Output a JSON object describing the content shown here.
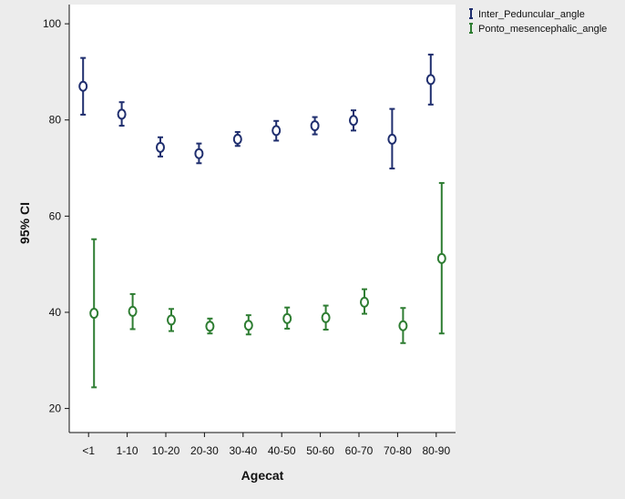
{
  "chart_data": {
    "type": "scatter",
    "title": "",
    "xlabel": "Agecat",
    "ylabel": "95% CI",
    "categories": [
      "<1",
      "1-10",
      "10-20",
      "20-30",
      "30-40",
      "40-50",
      "50-60",
      "60-70",
      "70-80",
      "80-90"
    ],
    "ylim": [
      15,
      104
    ],
    "yticks": [
      20,
      40,
      60,
      80,
      100
    ],
    "grid": false,
    "legend_position": "top-right",
    "series": [
      {
        "name": "Inter_Peduncular_angle",
        "color": "#1f2e6e",
        "marker": "circle-open",
        "means": [
          87.0,
          81.2,
          74.3,
          73.0,
          76.0,
          77.8,
          78.8,
          79.9,
          76.0,
          88.4
        ],
        "lower": [
          81.1,
          78.8,
          72.4,
          71.0,
          74.6,
          75.7,
          77.0,
          77.8,
          69.9,
          83.2
        ],
        "upper": [
          92.9,
          83.7,
          76.4,
          75.1,
          77.5,
          79.8,
          80.6,
          82.0,
          82.3,
          93.6
        ]
      },
      {
        "name": "Ponto_mesencephalic_angle",
        "color": "#2e7d32",
        "marker": "circle-open",
        "means": [
          39.8,
          40.2,
          38.4,
          37.1,
          37.3,
          38.7,
          38.9,
          42.1,
          37.2,
          51.2
        ],
        "lower": [
          24.4,
          36.5,
          36.1,
          35.6,
          35.4,
          36.6,
          36.4,
          39.7,
          33.6,
          35.6
        ],
        "upper": [
          55.2,
          43.8,
          40.7,
          38.7,
          39.4,
          41.0,
          41.4,
          44.8,
          40.9,
          66.9
        ]
      }
    ]
  }
}
